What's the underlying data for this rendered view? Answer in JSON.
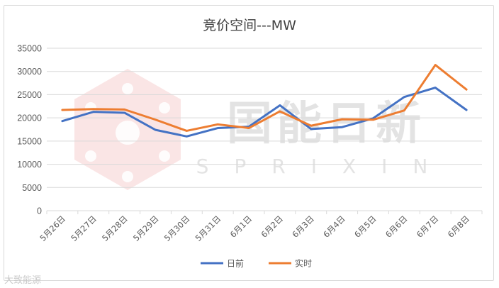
{
  "chart_data": {
    "type": "line",
    "title": "竞价空间---MW",
    "categories": [
      "5月26日",
      "5月27日",
      "5月28日",
      "5月29日",
      "5月30日",
      "5月31日",
      "6月1日",
      "6月2日",
      "6月3日",
      "6月4日",
      "6月5日",
      "6月6日",
      "6月7日",
      "6月8日"
    ],
    "series": [
      {
        "name": "日前",
        "color": "#4472c4",
        "values": [
          19300,
          21300,
          21100,
          17400,
          16000,
          17800,
          18100,
          22700,
          17600,
          18000,
          19900,
          24500,
          26500,
          21700
        ]
      },
      {
        "name": "实时",
        "color": "#ed7d31",
        "values": [
          21700,
          21900,
          21800,
          19600,
          17200,
          18600,
          17800,
          21400,
          18300,
          19700,
          19600,
          21600,
          31400,
          26100
        ]
      }
    ],
    "ylim": [
      0,
      35000
    ],
    "yticks": [
      0,
      5000,
      10000,
      15000,
      20000,
      25000,
      30000,
      35000
    ],
    "grid": true,
    "legend": "bottom"
  },
  "watermark": {
    "brand_cn": "国能日新",
    "brand_en": "SPRIXIN",
    "footer": "大致能源"
  }
}
